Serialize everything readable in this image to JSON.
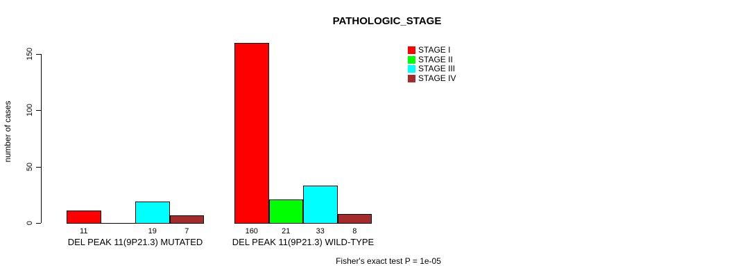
{
  "page": {
    "background": "#FFFFFF"
  },
  "chart_data": {
    "type": "bar",
    "title": "PATHOLOGIC_STAGE",
    "ylabel": "number of cases",
    "xlabel": "",
    "ylim": [
      0,
      160
    ],
    "yticks": [
      0,
      50,
      100,
      150
    ],
    "grid": false,
    "bar_border_color": "#000000",
    "categories": [
      "DEL PEAK 11(9P21.3) MUTATED",
      "DEL PEAK 11(9P21.3) WILD-TYPE"
    ],
    "series": [
      {
        "name": "STAGE I",
        "color": "#FF0000",
        "values": [
          11,
          160
        ]
      },
      {
        "name": "STAGE II",
        "color": "#00FF00",
        "values": [
          0,
          21
        ]
      },
      {
        "name": "STAGE III",
        "color": "#00FFFF",
        "values": [
          19,
          33
        ]
      },
      {
        "name": "STAGE IV",
        "color": "#A52A2A",
        "values": [
          7,
          8
        ]
      }
    ],
    "bar_value_labels": {
      "shown": true,
      "hide_zero": true
    },
    "legend_position": "top-right",
    "annotation": "Fisher's exact test P = 1e-05"
  }
}
